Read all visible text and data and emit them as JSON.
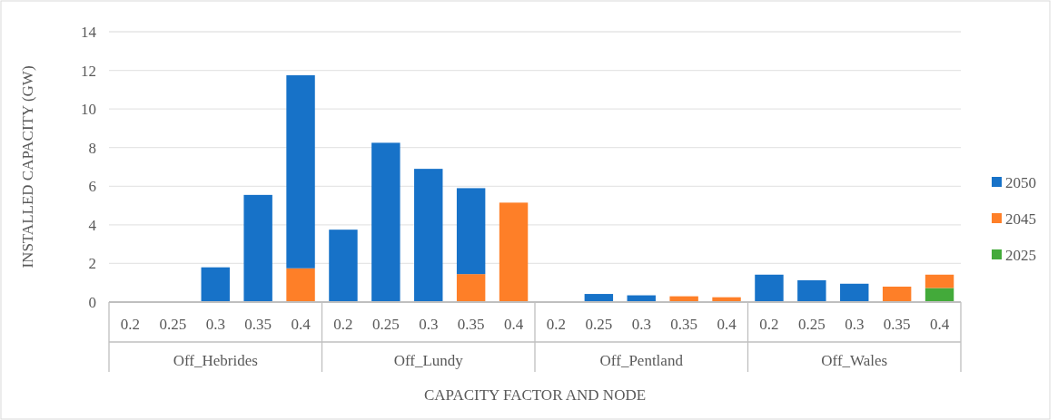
{
  "chart_data": {
    "type": "bar",
    "stacked": true,
    "xlabel": "CAPACITY FACTOR AND NODE",
    "ylabel": "INSTALLED CAPACITY (GW)",
    "categories": [
      "0.2",
      "0.25",
      "0.3",
      "0.35",
      "0.4",
      "0.2",
      "0.25",
      "0.3",
      "0.35",
      "0.4",
      "0.2",
      "0.25",
      "0.3",
      "0.35",
      "0.4",
      "0.2",
      "0.25",
      "0.3",
      "0.35",
      "0.4"
    ],
    "annotations": [
      "Off_Hebrides",
      "Off_Lundy",
      "Off_Pentland",
      "Off_Wales"
    ],
    "series": [
      {
        "name": "2025",
        "color": "#43aa3a",
        "values": [
          0,
          0,
          0,
          0,
          0,
          0,
          0,
          0,
          0,
          0,
          0,
          0,
          0,
          0,
          0,
          0,
          0,
          0,
          0,
          0.73
        ]
      },
      {
        "name": "2045",
        "color": "#fe7f28",
        "values": [
          0,
          0,
          0,
          0,
          1.75,
          0,
          0,
          0,
          1.45,
          5.15,
          0,
          0,
          0,
          0.3,
          0.25,
          0,
          0,
          0,
          0.8,
          0.69
        ]
      },
      {
        "name": "2050",
        "color": "#1772c8",
        "values": [
          0,
          0,
          1.8,
          5.55,
          10.0,
          3.75,
          8.25,
          6.9,
          4.45,
          0,
          0,
          0.42,
          0.35,
          0,
          0,
          1.42,
          1.13,
          0.95,
          0,
          0
        ]
      }
    ],
    "ylim": [
      0,
      14
    ],
    "yticks": [
      0,
      2,
      4,
      6,
      8,
      10,
      12,
      14
    ],
    "grid": true,
    "legend": "right"
  }
}
